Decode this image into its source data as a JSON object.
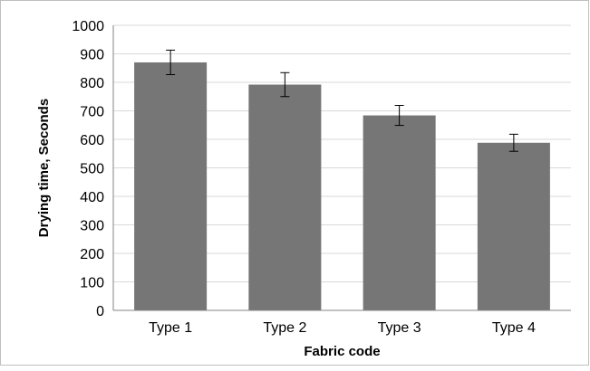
{
  "chart_data": {
    "type": "bar",
    "categories": [
      "Type 1",
      "Type 2",
      "Type 3",
      "Type 4"
    ],
    "series": [
      {
        "values": [
          870,
          792,
          684,
          588
        ],
        "error": [
          43,
          42,
          35,
          30
        ],
        "color": "#767676"
      }
    ],
    "xlabel": "Fabric code",
    "ylabel": "Drying time, Seconds",
    "ylim": [
      0,
      1000
    ],
    "yticks": [
      0,
      100,
      200,
      300,
      400,
      500,
      600,
      700,
      800,
      900,
      1000
    ],
    "grid": true,
    "grid_color": "#d9d9d9",
    "legend": "none"
  }
}
